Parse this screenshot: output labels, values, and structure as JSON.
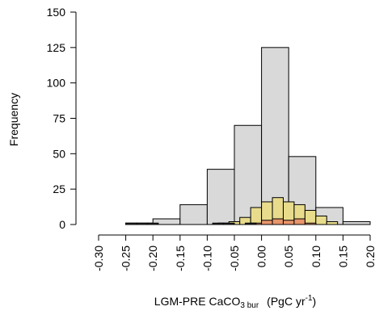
{
  "chart_data": {
    "type": "bar",
    "xlabel": {
      "main": "LGM-PRE CaCO",
      "subscript": "3 bur",
      "units_open": "(PgC yr",
      "units_sup": "-1",
      "units_close": ")"
    },
    "ylabel": "Frequency",
    "xlim": [
      -0.3,
      0.2
    ],
    "ylim": [
      0,
      150
    ],
    "x_ticks": [
      -0.3,
      -0.25,
      -0.2,
      -0.15,
      -0.1,
      -0.05,
      0.0,
      0.05,
      0.1,
      0.15,
      0.2
    ],
    "x_tick_labels": [
      "-0.30",
      "-0.25",
      "-0.20",
      "-0.15",
      "-0.10",
      "-0.05",
      "0.00",
      "0.05",
      "0.10",
      "0.15",
      "0.20"
    ],
    "y_ticks": [
      0,
      25,
      50,
      75,
      100,
      125,
      150
    ],
    "y_tick_labels": [
      "0",
      "25",
      "50",
      "75",
      "100",
      "125",
      "150"
    ],
    "series": [
      {
        "color": "#d9d9d9",
        "bin_width": 0.05,
        "bins": [
          {
            "x0": -0.25,
            "x1": -0.2,
            "count": 1
          },
          {
            "x0": -0.2,
            "x1": -0.15,
            "count": 4
          },
          {
            "x0": -0.15,
            "x1": -0.1,
            "count": 14
          },
          {
            "x0": -0.1,
            "x1": -0.05,
            "count": 39
          },
          {
            "x0": -0.05,
            "x1": 0.0,
            "count": 70
          },
          {
            "x0": 0.0,
            "x1": 0.05,
            "count": 125
          },
          {
            "x0": 0.05,
            "x1": 0.1,
            "count": 48
          },
          {
            "x0": 0.1,
            "x1": 0.15,
            "count": 12
          },
          {
            "x0": 0.15,
            "x1": 0.2,
            "count": 2
          }
        ]
      },
      {
        "color": "#e8dc8c",
        "bin_width": 0.02,
        "bins": [
          {
            "x0": -0.08,
            "x1": -0.06,
            "count": 1
          },
          {
            "x0": -0.06,
            "x1": -0.04,
            "count": 2
          },
          {
            "x0": -0.04,
            "x1": -0.02,
            "count": 5
          },
          {
            "x0": -0.02,
            "x1": 0.0,
            "count": 12
          },
          {
            "x0": 0.0,
            "x1": 0.02,
            "count": 16
          },
          {
            "x0": 0.02,
            "x1": 0.04,
            "count": 19
          },
          {
            "x0": 0.04,
            "x1": 0.06,
            "count": 16
          },
          {
            "x0": 0.06,
            "x1": 0.08,
            "count": 14
          },
          {
            "x0": 0.08,
            "x1": 0.1,
            "count": 10
          },
          {
            "x0": 0.1,
            "x1": 0.12,
            "count": 6
          },
          {
            "x0": 0.12,
            "x1": 0.14,
            "count": 2
          }
        ]
      },
      {
        "color": "#e8956b",
        "bin_width": 0.02,
        "bins": [
          {
            "x0": -0.02,
            "x1": 0.0,
            "count": 1
          },
          {
            "x0": 0.0,
            "x1": 0.02,
            "count": 3
          },
          {
            "x0": 0.02,
            "x1": 0.04,
            "count": 4
          },
          {
            "x0": 0.04,
            "x1": 0.06,
            "count": 3
          },
          {
            "x0": 0.06,
            "x1": 0.08,
            "count": 4
          },
          {
            "x0": 0.08,
            "x1": 0.1,
            "count": 1
          }
        ]
      },
      {
        "color": "#333333",
        "bin_width": 0.02,
        "bins": [
          {
            "x0": -0.25,
            "x1": -0.23,
            "count": 1
          },
          {
            "x0": -0.23,
            "x1": -0.21,
            "count": 1
          },
          {
            "x0": -0.21,
            "x1": -0.19,
            "count": 1
          },
          {
            "x0": -0.09,
            "x1": -0.07,
            "count": 1
          },
          {
            "x0": -0.07,
            "x1": -0.05,
            "count": 1
          },
          {
            "x0": -0.03,
            "x1": -0.01,
            "count": 1
          }
        ]
      }
    ]
  }
}
